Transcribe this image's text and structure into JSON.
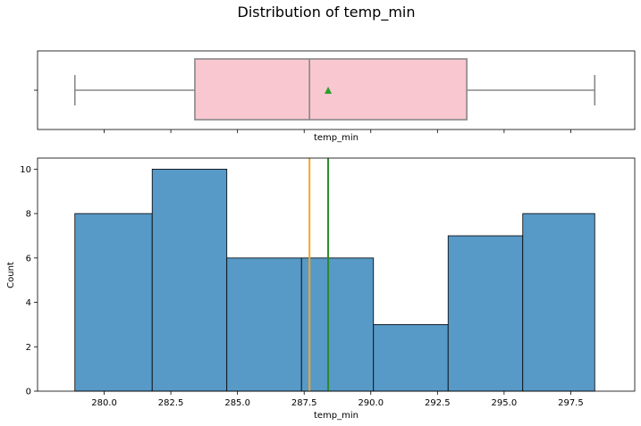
{
  "chart_data": {
    "title": "Distribution of temp_min",
    "boxplot": {
      "type": "box",
      "xlabel": "temp_min",
      "whisker_low": 278.9,
      "q1": 283.4,
      "median": 287.7,
      "mean": 288.4,
      "q3": 293.6,
      "whisker_high": 298.4,
      "box_color": "#f9c7d0",
      "line_color": "#888888",
      "mean_marker_color": "#2ca02c"
    },
    "histogram": {
      "type": "bar",
      "xlabel": "temp_min",
      "ylabel": "Count",
      "bin_edges": [
        278.9,
        281.8,
        284.6,
        287.4,
        290.1,
        292.9,
        295.7,
        298.4
      ],
      "counts": [
        8,
        10,
        6,
        6,
        3,
        7,
        8
      ],
      "bar_color": "#5799c7",
      "median_line": {
        "value": 287.7,
        "color": "#f5a623"
      },
      "mean_line": {
        "value": 288.4,
        "color": "#2a8a2a"
      },
      "xlim": [
        277.5,
        299.9
      ],
      "ylim": [
        0,
        10.5
      ],
      "xticks": [
        "280.0",
        "282.5",
        "285.0",
        "287.5",
        "290.0",
        "292.5",
        "295.0",
        "297.5"
      ],
      "yticks": [
        "0",
        "2",
        "4",
        "6",
        "8",
        "10"
      ]
    }
  }
}
